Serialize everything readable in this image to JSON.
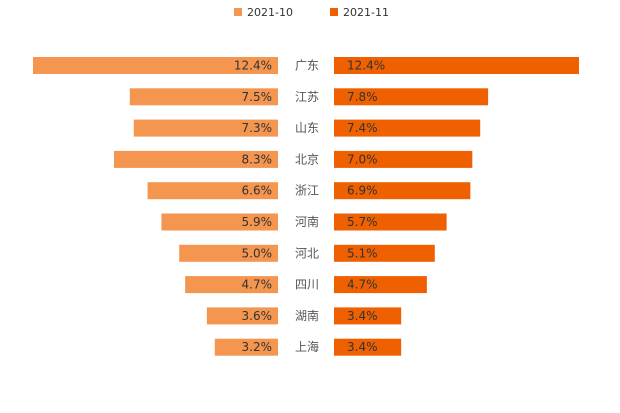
{
  "chart_data": {
    "type": "bar",
    "orientation": "horizontal-mirrored",
    "title": "",
    "categories": [
      "广东",
      "江苏",
      "山东",
      "北京",
      "浙江",
      "河南",
      "河北",
      "四川",
      "湖南",
      "上海"
    ],
    "series": [
      {
        "name": "2021-10",
        "color": "#F4964F",
        "side": "left",
        "values": [
          12.4,
          7.5,
          7.3,
          8.3,
          6.6,
          5.9,
          5.0,
          4.7,
          3.6,
          3.2
        ],
        "labels": [
          "12.4%",
          "7.5%",
          "7.3%",
          "8.3%",
          "6.6%",
          "5.9%",
          "5.0%",
          "4.7%",
          "3.6%",
          "3.2%"
        ]
      },
      {
        "name": "2021-11",
        "color": "#EE6000",
        "side": "right",
        "values": [
          12.4,
          7.8,
          7.4,
          7.0,
          6.9,
          5.7,
          5.1,
          4.7,
          3.4,
          3.4
        ],
        "labels": [
          "12.4%",
          "7.8%",
          "7.4%",
          "7.0%",
          "6.9%",
          "5.7%",
          "5.1%",
          "4.7%",
          "3.4%",
          "3.4%"
        ]
      }
    ],
    "unit": "%",
    "xlim": [
      0,
      12.4
    ],
    "legend_position": "top-center",
    "grid": false
  }
}
